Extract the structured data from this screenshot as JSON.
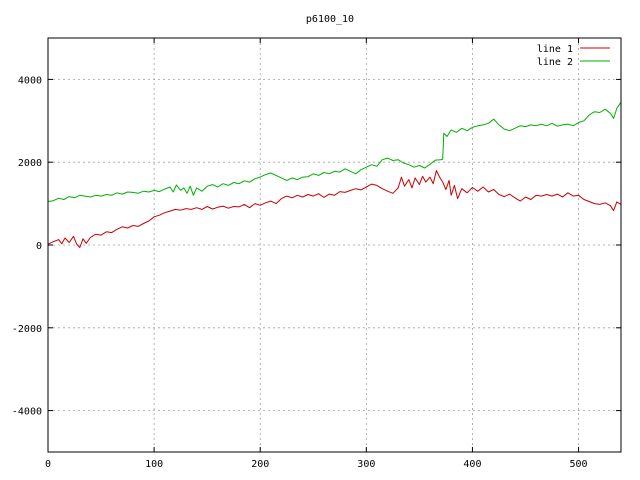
{
  "chart_data": {
    "type": "line",
    "title": "p6100_10",
    "xlabel": "",
    "ylabel": "",
    "xlim": [
      0,
      540
    ],
    "ylim": [
      -5000,
      5000
    ],
    "x_ticks": [
      0,
      100,
      200,
      300,
      400,
      500
    ],
    "y_ticks": [
      -4000,
      -2000,
      0,
      2000,
      4000
    ],
    "grid": true,
    "legend_position": "top-right",
    "series": [
      {
        "name": "line 1",
        "color": "#cc0000",
        "points": [
          [
            0,
            20
          ],
          [
            5,
            80
          ],
          [
            10,
            130
          ],
          [
            13,
            30
          ],
          [
            16,
            170
          ],
          [
            20,
            60
          ],
          [
            24,
            210
          ],
          [
            27,
            20
          ],
          [
            30,
            -60
          ],
          [
            33,
            150
          ],
          [
            36,
            40
          ],
          [
            40,
            180
          ],
          [
            45,
            260
          ],
          [
            50,
            240
          ],
          [
            55,
            320
          ],
          [
            60,
            300
          ],
          [
            65,
            380
          ],
          [
            70,
            440
          ],
          [
            75,
            410
          ],
          [
            80,
            470
          ],
          [
            85,
            450
          ],
          [
            90,
            520
          ],
          [
            95,
            580
          ],
          [
            100,
            680
          ],
          [
            105,
            720
          ],
          [
            110,
            780
          ],
          [
            115,
            820
          ],
          [
            120,
            860
          ],
          [
            125,
            840
          ],
          [
            130,
            880
          ],
          [
            135,
            860
          ],
          [
            140,
            900
          ],
          [
            145,
            860
          ],
          [
            150,
            930
          ],
          [
            155,
            870
          ],
          [
            160,
            910
          ],
          [
            165,
            940
          ],
          [
            170,
            890
          ],
          [
            175,
            930
          ],
          [
            180,
            920
          ],
          [
            185,
            980
          ],
          [
            190,
            900
          ],
          [
            195,
            1000
          ],
          [
            200,
            960
          ],
          [
            205,
            1020
          ],
          [
            210,
            1060
          ],
          [
            215,
            1000
          ],
          [
            220,
            1120
          ],
          [
            225,
            1180
          ],
          [
            230,
            1140
          ],
          [
            235,
            1200
          ],
          [
            240,
            1160
          ],
          [
            245,
            1220
          ],
          [
            250,
            1180
          ],
          [
            255,
            1240
          ],
          [
            260,
            1150
          ],
          [
            265,
            1230
          ],
          [
            270,
            1200
          ],
          [
            275,
            1290
          ],
          [
            280,
            1270
          ],
          [
            285,
            1320
          ],
          [
            290,
            1360
          ],
          [
            295,
            1330
          ],
          [
            300,
            1400
          ],
          [
            305,
            1470
          ],
          [
            310,
            1440
          ],
          [
            315,
            1360
          ],
          [
            320,
            1300
          ],
          [
            325,
            1250
          ],
          [
            330,
            1380
          ],
          [
            333,
            1640
          ],
          [
            336,
            1420
          ],
          [
            340,
            1580
          ],
          [
            343,
            1380
          ],
          [
            346,
            1620
          ],
          [
            350,
            1460
          ],
          [
            353,
            1660
          ],
          [
            356,
            1520
          ],
          [
            360,
            1640
          ],
          [
            363,
            1480
          ],
          [
            366,
            1800
          ],
          [
            369,
            1640
          ],
          [
            372,
            1520
          ],
          [
            375,
            1340
          ],
          [
            378,
            1560
          ],
          [
            380,
            1200
          ],
          [
            383,
            1440
          ],
          [
            386,
            1120
          ],
          [
            390,
            1360
          ],
          [
            395,
            1260
          ],
          [
            400,
            1390
          ],
          [
            405,
            1300
          ],
          [
            410,
            1400
          ],
          [
            415,
            1280
          ],
          [
            420,
            1340
          ],
          [
            425,
            1220
          ],
          [
            430,
            1170
          ],
          [
            435,
            1230
          ],
          [
            440,
            1140
          ],
          [
            445,
            1060
          ],
          [
            450,
            1160
          ],
          [
            455,
            1100
          ],
          [
            460,
            1200
          ],
          [
            465,
            1180
          ],
          [
            470,
            1220
          ],
          [
            475,
            1180
          ],
          [
            480,
            1230
          ],
          [
            485,
            1160
          ],
          [
            490,
            1260
          ],
          [
            495,
            1180
          ],
          [
            500,
            1200
          ],
          [
            505,
            1100
          ],
          [
            510,
            1050
          ],
          [
            515,
            1000
          ],
          [
            520,
            980
          ],
          [
            525,
            1020
          ],
          [
            530,
            950
          ],
          [
            533,
            830
          ],
          [
            536,
            1040
          ],
          [
            540,
            980
          ]
        ]
      },
      {
        "name": "line 2",
        "color": "#00b000",
        "points": [
          [
            0,
            1050
          ],
          [
            5,
            1070
          ],
          [
            10,
            1130
          ],
          [
            15,
            1100
          ],
          [
            20,
            1170
          ],
          [
            25,
            1140
          ],
          [
            30,
            1200
          ],
          [
            35,
            1180
          ],
          [
            40,
            1160
          ],
          [
            45,
            1200
          ],
          [
            50,
            1180
          ],
          [
            55,
            1220
          ],
          [
            60,
            1200
          ],
          [
            65,
            1260
          ],
          [
            70,
            1230
          ],
          [
            75,
            1280
          ],
          [
            80,
            1270
          ],
          [
            85,
            1250
          ],
          [
            90,
            1300
          ],
          [
            95,
            1280
          ],
          [
            100,
            1320
          ],
          [
            105,
            1290
          ],
          [
            110,
            1350
          ],
          [
            115,
            1400
          ],
          [
            118,
            1280
          ],
          [
            121,
            1450
          ],
          [
            125,
            1320
          ],
          [
            128,
            1380
          ],
          [
            131,
            1250
          ],
          [
            134,
            1420
          ],
          [
            137,
            1200
          ],
          [
            140,
            1380
          ],
          [
            145,
            1300
          ],
          [
            150,
            1420
          ],
          [
            155,
            1460
          ],
          [
            160,
            1400
          ],
          [
            165,
            1480
          ],
          [
            170,
            1440
          ],
          [
            175,
            1510
          ],
          [
            180,
            1480
          ],
          [
            185,
            1550
          ],
          [
            190,
            1520
          ],
          [
            195,
            1600
          ],
          [
            200,
            1640
          ],
          [
            205,
            1700
          ],
          [
            210,
            1740
          ],
          [
            215,
            1680
          ],
          [
            220,
            1620
          ],
          [
            225,
            1560
          ],
          [
            230,
            1620
          ],
          [
            235,
            1580
          ],
          [
            240,
            1640
          ],
          [
            245,
            1650
          ],
          [
            250,
            1720
          ],
          [
            255,
            1680
          ],
          [
            260,
            1750
          ],
          [
            265,
            1720
          ],
          [
            270,
            1780
          ],
          [
            275,
            1760
          ],
          [
            280,
            1840
          ],
          [
            285,
            1780
          ],
          [
            290,
            1720
          ],
          [
            295,
            1820
          ],
          [
            300,
            1880
          ],
          [
            305,
            1940
          ],
          [
            310,
            1900
          ],
          [
            315,
            2060
          ],
          [
            320,
            2100
          ],
          [
            325,
            2040
          ],
          [
            330,
            2060
          ],
          [
            335,
            1980
          ],
          [
            340,
            1940
          ],
          [
            345,
            1880
          ],
          [
            350,
            1920
          ],
          [
            355,
            1860
          ],
          [
            360,
            1950
          ],
          [
            365,
            2050
          ],
          [
            370,
            2060
          ],
          [
            372,
            2070
          ],
          [
            373,
            2700
          ],
          [
            376,
            2620
          ],
          [
            380,
            2780
          ],
          [
            385,
            2720
          ],
          [
            390,
            2820
          ],
          [
            395,
            2760
          ],
          [
            400,
            2840
          ],
          [
            405,
            2880
          ],
          [
            410,
            2900
          ],
          [
            415,
            2940
          ],
          [
            420,
            3040
          ],
          [
            425,
            2900
          ],
          [
            430,
            2800
          ],
          [
            435,
            2760
          ],
          [
            440,
            2820
          ],
          [
            445,
            2880
          ],
          [
            450,
            2860
          ],
          [
            455,
            2900
          ],
          [
            460,
            2880
          ],
          [
            465,
            2920
          ],
          [
            470,
            2880
          ],
          [
            475,
            2940
          ],
          [
            480,
            2870
          ],
          [
            485,
            2900
          ],
          [
            490,
            2920
          ],
          [
            495,
            2880
          ],
          [
            500,
            2960
          ],
          [
            505,
            3000
          ],
          [
            510,
            3140
          ],
          [
            515,
            3220
          ],
          [
            520,
            3200
          ],
          [
            525,
            3280
          ],
          [
            530,
            3180
          ],
          [
            533,
            3060
          ],
          [
            536,
            3300
          ],
          [
            540,
            3450
          ]
        ]
      }
    ]
  }
}
